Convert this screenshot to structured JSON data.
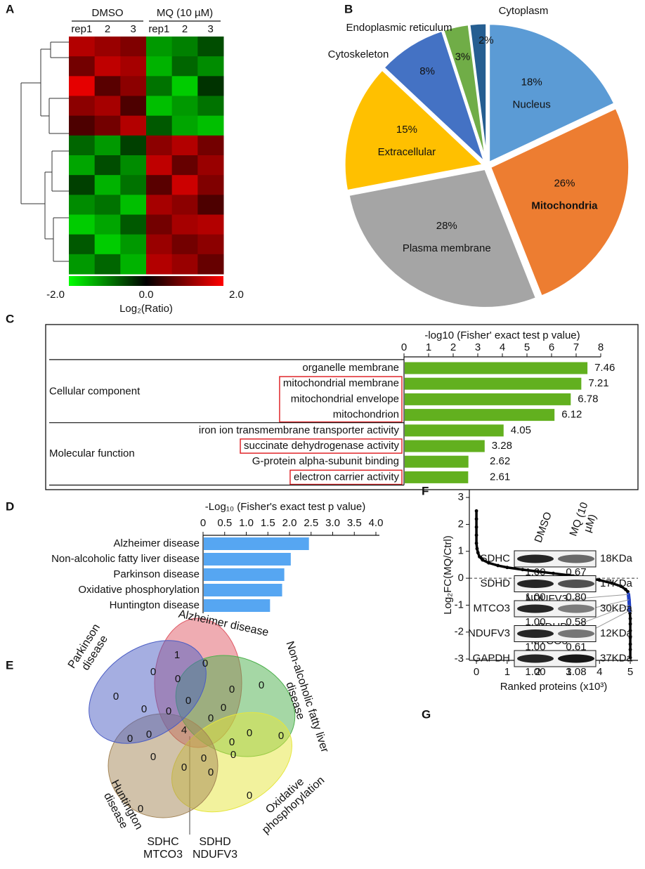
{
  "chart_data": [
    {
      "panel": "A",
      "type": "heatmap",
      "column_groups": [
        "DMSO",
        "MQ (10 µM)"
      ],
      "columns": [
        "rep1",
        "2",
        "3",
        "rep1",
        "2",
        "3"
      ],
      "values": [
        [
          1.4,
          1.2,
          1.0,
          -1.2,
          -1.0,
          -0.6
        ],
        [
          0.9,
          1.5,
          1.3,
          -1.4,
          -0.8,
          -1.1
        ],
        [
          1.8,
          0.7,
          1.1,
          -0.9,
          -1.6,
          -0.4
        ],
        [
          1.1,
          1.3,
          0.6,
          -1.5,
          -1.2,
          -0.9
        ],
        [
          0.6,
          0.9,
          1.4,
          -0.7,
          -1.3,
          -1.5
        ],
        [
          -0.8,
          -1.2,
          -0.5,
          1.1,
          1.4,
          0.9
        ],
        [
          -1.3,
          -0.6,
          -1.1,
          1.5,
          0.8,
          1.2
        ],
        [
          -0.5,
          -1.4,
          -0.9,
          0.7,
          1.6,
          1.0
        ],
        [
          -1.1,
          -0.9,
          -1.5,
          1.3,
          1.1,
          0.6
        ],
        [
          -1.6,
          -1.3,
          -0.7,
          0.9,
          1.3,
          1.4
        ],
        [
          -0.7,
          -1.6,
          -1.2,
          1.2,
          0.9,
          1.1
        ],
        [
          -1.2,
          -0.8,
          -1.4,
          1.4,
          1.2,
          0.8
        ]
      ],
      "clim": [
        -2,
        2
      ],
      "cticks": [
        {
          "value": -2,
          "label": "-2.0"
        },
        {
          "value": 0,
          "label": "0.0"
        },
        {
          "value": 2,
          "label": "2.0"
        }
      ],
      "colors": [
        "#00ff00",
        "#000000",
        "#ff0000"
      ],
      "colorbar_label": "Log₂(Ratio)"
    },
    {
      "panel": "B",
      "type": "pie",
      "categories": [
        "Nucleus",
        "Mitochondria",
        "Plasma membrane",
        "Extracellular",
        "Cytoskeleton",
        "Endoplasmic reticulum",
        "Cytoplasm"
      ],
      "values": [
        18,
        26,
        28,
        15,
        8,
        3,
        2
      ],
      "value_labels": [
        "18%",
        "26%",
        "28%",
        "15%",
        "8%",
        "3%",
        "2%"
      ],
      "colors": [
        "#5b9bd5",
        "#ed7d31",
        "#a5a5a5",
        "#ffc000",
        "#4472c4",
        "#70ad47",
        "#255e91"
      ]
    },
    {
      "panel": "C",
      "type": "bar",
      "xlabel": "-log10 (Fisher' exact test p value)",
      "xlim": [
        0,
        8
      ],
      "xticks": [
        0,
        1,
        2,
        3,
        4,
        5,
        6,
        7,
        8
      ],
      "color": "#62b01f",
      "highlight_color": "#e0262a",
      "groups": [
        {
          "name": "Cellular component",
          "categories": [
            "organelle membrane",
            "mitochondrial membrane",
            "mitochondrial envelope",
            "mitochondrion"
          ],
          "values": [
            7.46,
            7.21,
            6.78,
            6.12
          ],
          "highlight": [
            false,
            true,
            true,
            true
          ]
        },
        {
          "name": "Molecular function",
          "categories": [
            "iron ion transmembrane transporter activity",
            "succinate dehydrogenase activity",
            "G-protein alpha-subunit binding",
            "electron carrier activity"
          ],
          "values": [
            4.05,
            3.28,
            2.62,
            2.61
          ],
          "highlight": [
            false,
            true,
            false,
            true
          ]
        }
      ]
    },
    {
      "panel": "D",
      "type": "bar",
      "xlabel": "-Log₁₀ (Fisher's exact test p value)",
      "xlim": [
        0,
        4
      ],
      "xticks": [
        0,
        0.5,
        {
          "value": 1,
          "label": "1.0"
        },
        1.5,
        {
          "value": 2,
          "label": "2.0"
        },
        2.5,
        {
          "value": 3,
          "label": "3.0"
        },
        3.5,
        {
          "value": 4,
          "label": "4.0"
        }
      ],
      "categories": [
        "Alzheimer disease",
        "Non-alcoholic fatty liver disease",
        "Parkinson disease",
        "Oxidative phosphorylation",
        "Huntington disease"
      ],
      "values": [
        2.45,
        2.03,
        1.88,
        1.83,
        1.55
      ],
      "color": "#56a6f2"
    },
    {
      "panel": "E",
      "type": "venn",
      "sets": [
        "Alzheimer disease",
        "Non-alcoholic fatty liver disease",
        "Oxidative phosphorylation",
        "Huntington disease",
        "Parkinson disease"
      ],
      "colors": [
        "#e05a66",
        "#4cb04c",
        "#e6e63c",
        "#a48556",
        "#4b5dc4"
      ],
      "region_counts": [
        1,
        0,
        0,
        0,
        0,
        0,
        0,
        0,
        0,
        0,
        0,
        0,
        0,
        0,
        0,
        4,
        0,
        0,
        0,
        0,
        0,
        0,
        0,
        0,
        0
      ],
      "annotations": [
        "SDHC MTCO3",
        "SDHD NDUFV3"
      ]
    },
    {
      "panel": "F",
      "type": "scatter",
      "ylabel": "Log₂FC(MQ/Ctrl)",
      "xlabel": "Ranked proteins (x10³)",
      "xlim": [
        -0.23,
        5.25
      ],
      "xticks": [
        0,
        1,
        2,
        3,
        4,
        5
      ],
      "ylim": [
        -3.05,
        3.29
      ],
      "yticks": [
        3,
        2,
        1,
        0,
        -1,
        -2,
        -3
      ],
      "reference_line": 0,
      "series": [
        {
          "color": "#000000",
          "x": [
            0,
            0,
            0,
            0,
            0,
            0.02,
            0.05,
            0.1,
            0.2,
            0.4,
            0.7,
            1.0,
            1.5,
            2.0,
            2.5,
            3.0,
            3.5,
            4.0,
            4.4,
            4.7,
            4.85,
            4.92,
            4.99,
            5.0,
            5.0,
            5.0,
            5.0,
            5.0,
            5.0,
            5.0
          ],
          "values": [
            2.5,
            2.2,
            1.9,
            1.6,
            1.3,
            1.1,
            0.95,
            0.8,
            0.68,
            0.57,
            0.47,
            0.4,
            0.32,
            0.25,
            0.18,
            0.11,
            0.03,
            -0.07,
            -0.18,
            -0.3,
            -0.42,
            -0.5,
            -1.3,
            -1.5,
            -1.7,
            -1.95,
            -2.2,
            -2.45,
            -2.65,
            -2.95
          ]
        },
        {
          "color": "#1f3fc4",
          "x": [
            4.94,
            4.96,
            4.97,
            4.98
          ],
          "values": [
            -0.6,
            -0.8,
            -1.0,
            -1.2
          ]
        }
      ],
      "annotations": [
        "NDUFV3",
        "SDHC",
        "SDHD",
        "MTCO3"
      ]
    },
    {
      "panel": "G",
      "type": "blot",
      "lanes": [
        "DMSO",
        "MQ (10 µM)"
      ],
      "rows": [
        {
          "name": "SDHC",
          "size": "18KDa",
          "values": [
            1,
            0.67
          ],
          "value_labels": [
            "1.00",
            "0.67"
          ]
        },
        {
          "name": "SDHD",
          "size": "17KDa",
          "values": [
            1,
            0.8
          ],
          "value_labels": [
            "1.00",
            "0.80"
          ]
        },
        {
          "name": "MTCO3",
          "size": "30KDa",
          "values": [
            1,
            0.58
          ],
          "value_labels": [
            "1.00",
            "0.58"
          ]
        },
        {
          "name": "NDUFV3",
          "size": "12KDa",
          "values": [
            1,
            0.61
          ],
          "value_labels": [
            "1.00",
            "0.61"
          ]
        },
        {
          "name": "GAPDH",
          "size": "37KDa",
          "values": [
            1,
            1.08
          ],
          "value_labels": [
            "1.00",
            "1.08"
          ]
        }
      ]
    }
  ]
}
